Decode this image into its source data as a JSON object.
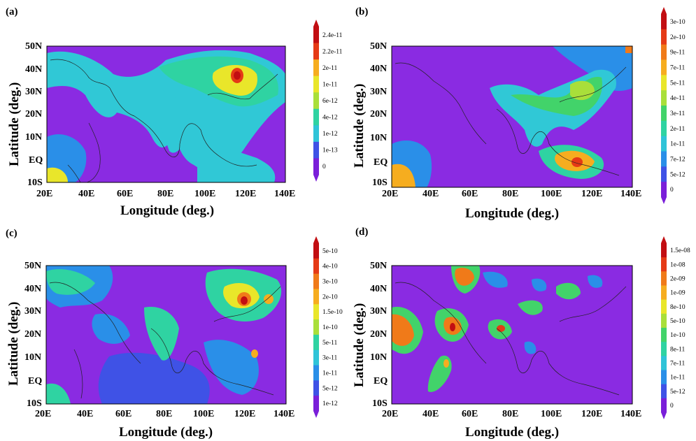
{
  "axes": {
    "xlabel": "Longitude (deg.)",
    "ylabel": "Latitude (deg.)",
    "x_ticks": [
      "20E",
      "40E",
      "60E",
      "80E",
      "100E",
      "120E",
      "140E"
    ],
    "y_ticks": [
      "50N",
      "40N",
      "30N",
      "20N",
      "10N",
      "EQ",
      "10S"
    ]
  },
  "colors": {
    "background_field": "#8a2be2",
    "coastline": "#222222",
    "scale": [
      "#7a1fd9",
      "#3f52e6",
      "#2a8fe8",
      "#2fc4d8",
      "#2fd3a2",
      "#42d36a",
      "#a9df3a",
      "#e9e62a",
      "#f6ad1f",
      "#f07a19",
      "#e53a16",
      "#c20e12"
    ]
  },
  "chart_data": [
    {
      "type": "heatmap",
      "panel": "(a)",
      "x_range": [
        20,
        140
      ],
      "y_range": [
        -10,
        50
      ],
      "colorbar": [
        "2.4e-11",
        "2.2e-11",
        "2e-11",
        "1e-11",
        "6e-12",
        "4e-12",
        "1e-12",
        "1e-13",
        "0"
      ],
      "hotspots": [
        {
          "lon": 113,
          "lat": 36,
          "level": "2.4e-11"
        },
        {
          "lon": 110,
          "lat": 32,
          "level": "1e-11"
        },
        {
          "lon": 80,
          "lat": 27,
          "level": "4e-12"
        },
        {
          "lon": 100,
          "lat": 15,
          "level": "4e-12"
        },
        {
          "lon": 25,
          "lat": -8,
          "level": "1e-11"
        }
      ]
    },
    {
      "type": "heatmap",
      "panel": "(b)",
      "x_range": [
        20,
        140
      ],
      "y_range": [
        -10,
        50
      ],
      "colorbar": [
        "3e-10",
        "2e-10",
        "9e-11",
        "7e-11",
        "5e-11",
        "4e-11",
        "3e-11",
        "2e-11",
        "1e-11",
        "7e-12",
        "5e-12",
        "0"
      ],
      "hotspots": [
        {
          "lon": 110,
          "lat": -1,
          "level": "3e-10"
        },
        {
          "lon": 115,
          "lat": 31,
          "level": "5e-11"
        },
        {
          "lon": 80,
          "lat": 24,
          "level": "4e-11"
        },
        {
          "lon": 25,
          "lat": -8,
          "level": "7e-11"
        },
        {
          "lon": 138,
          "lat": 49,
          "level": "7e-11"
        }
      ]
    },
    {
      "type": "heatmap",
      "panel": "(c)",
      "x_range": [
        20,
        140
      ],
      "y_range": [
        -10,
        50
      ],
      "colorbar": [
        "5e-10",
        "4e-10",
        "3e-10",
        "2e-10",
        "1.5e-10",
        "1e-10",
        "5e-11",
        "3e-11",
        "1e-11",
        "5e-12",
        "1e-12"
      ],
      "hotspots": [
        {
          "lon": 120,
          "lat": 31,
          "level": "5e-10"
        },
        {
          "lon": 128,
          "lat": 31,
          "level": "3e-10"
        },
        {
          "lon": 115,
          "lat": 36,
          "level": "1.5e-10"
        },
        {
          "lon": 25,
          "lat": 40,
          "level": "5e-11"
        },
        {
          "lon": 122,
          "lat": 12,
          "level": "2e-10"
        }
      ]
    },
    {
      "type": "heatmap",
      "panel": "(d)",
      "x_range": [
        20,
        140
      ],
      "y_range": [
        -10,
        50
      ],
      "colorbar": [
        "1.5e-08",
        "1e-08",
        "2e-09",
        "1e-09",
        "8e-10",
        "5e-10",
        "1e-10",
        "8e-11",
        "7e-11",
        "1e-11",
        "5e-12",
        "0"
      ],
      "hotspots": [
        {
          "lon": 51,
          "lat": 22,
          "level": "1.5e-08"
        },
        {
          "lon": 71,
          "lat": 23,
          "level": "1e-08"
        },
        {
          "lon": 58,
          "lat": 43,
          "level": "1e-09"
        },
        {
          "lon": 25,
          "lat": 25,
          "level": "1e-09"
        },
        {
          "lon": 46,
          "lat": 7,
          "level": "1e-09"
        }
      ]
    }
  ]
}
